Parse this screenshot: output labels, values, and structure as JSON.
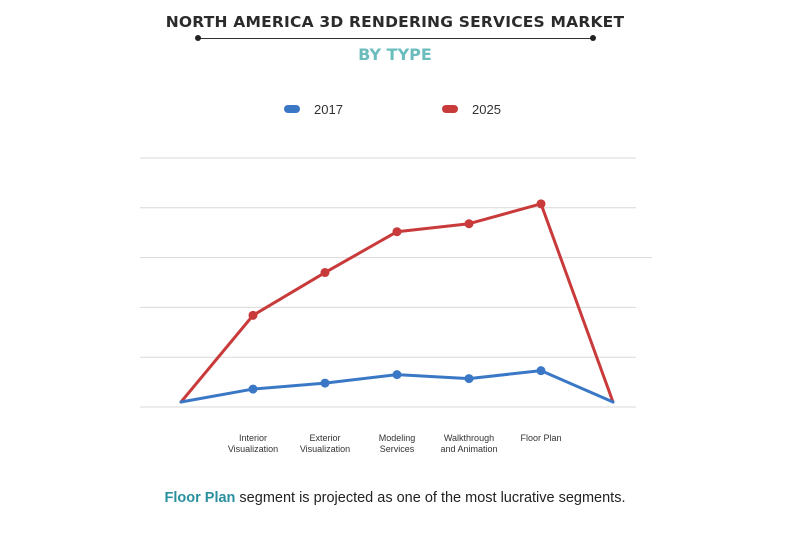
{
  "header": {
    "title": "NORTH AMERICA 3D RENDERING SERVICES MARKET",
    "subtitle": "BY TYPE"
  },
  "legend": [
    {
      "label": "2017",
      "color": "#3a78c6"
    },
    {
      "label": "2025",
      "color": "#c93a3a"
    }
  ],
  "chart_data": {
    "type": "line",
    "title": "NORTH AMERICA 3D RENDERING SERVICES MARKET",
    "subtitle": "BY TYPE",
    "categories": [
      "",
      "Interior Visualization",
      "Exterior Visualization",
      "Modeling Services",
      "Walkthrough and Animation",
      "Floor Plan",
      ""
    ],
    "category_labels": [
      [
        "",
        ""
      ],
      [
        "Interior",
        "Visualization"
      ],
      [
        "Exterior",
        "Visualization"
      ],
      [
        "Modeling",
        "Services"
      ],
      [
        "Walkthrough",
        "and Animation"
      ],
      [
        "Floor Plan",
        ""
      ],
      [
        "",
        ""
      ]
    ],
    "series": [
      {
        "name": "2017",
        "color": "#3a78c6",
        "values": [
          0.1,
          0.36,
          0.48,
          0.65,
          0.57,
          0.73,
          0.1
        ],
        "markers": [
          false,
          true,
          true,
          true,
          true,
          true,
          false
        ]
      },
      {
        "name": "2025",
        "color": "#c93a3a",
        "values": [
          0.1,
          1.84,
          2.7,
          3.52,
          3.68,
          4.08,
          0.1
        ],
        "markers": [
          false,
          true,
          true,
          true,
          true,
          true,
          false
        ]
      }
    ],
    "ylim": [
      0,
      5
    ],
    "gridlines": [
      0,
      1,
      2,
      3,
      4,
      5
    ],
    "xlabel": "",
    "ylabel": "",
    "legend_position": "top-center",
    "grid": true
  },
  "footer": {
    "highlight": "Floor Plan",
    "text": " segment is projected as one of the most lucrative segments."
  }
}
